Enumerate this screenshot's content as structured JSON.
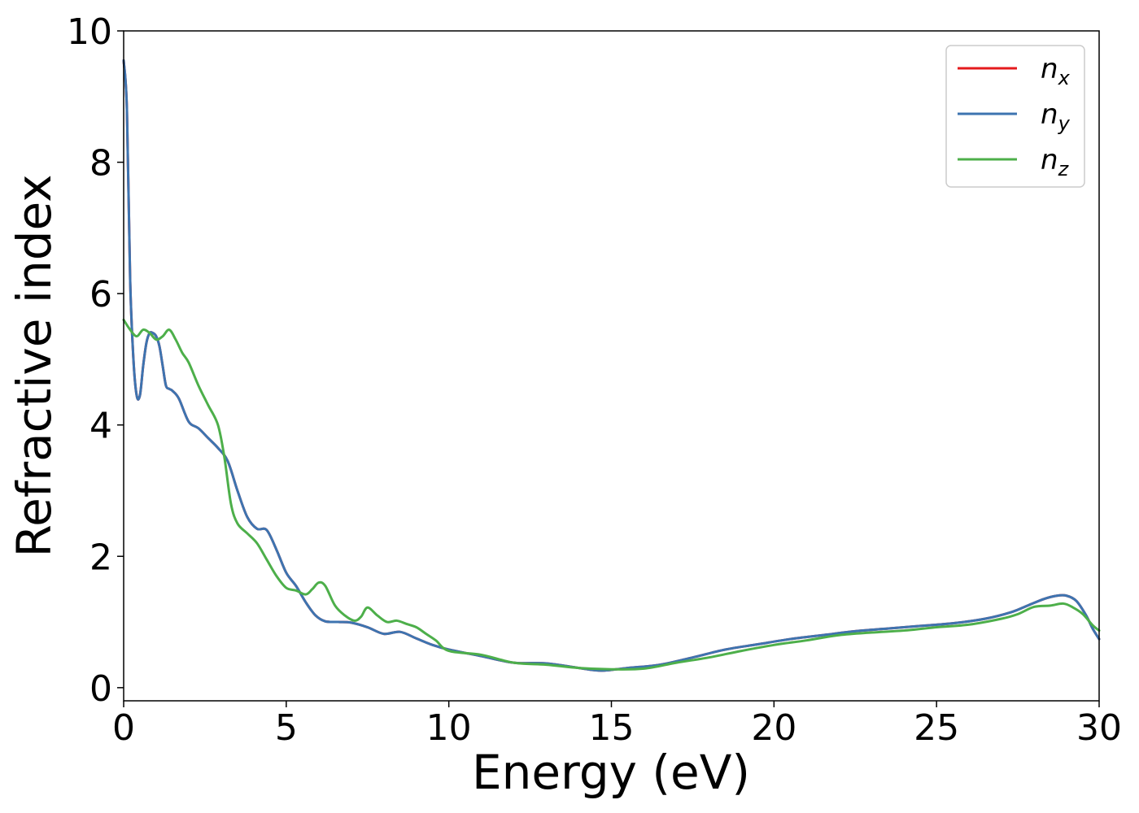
{
  "chart_data": {
    "type": "line",
    "title": "",
    "xlabel": "Energy (eV)",
    "ylabel": "Refractive index",
    "xlim": [
      0,
      30
    ],
    "ylim": [
      -0.2,
      10
    ],
    "xticks": [
      0,
      5,
      10,
      15,
      20,
      25,
      30
    ],
    "yticks": [
      0,
      2,
      4,
      6,
      8,
      10
    ],
    "xtick_labels": [
      "0",
      "5",
      "10",
      "15",
      "20",
      "25",
      "30"
    ],
    "ytick_labels": [
      "0",
      "2",
      "4",
      "6",
      "8",
      "10"
    ],
    "grid": false,
    "legend_position": "top-right",
    "series": [
      {
        "name": "n_x",
        "legend_base": "n",
        "legend_sub": "x",
        "color": "#e41a1c",
        "x": [
          0,
          0.1,
          0.2,
          0.3,
          0.4,
          0.5,
          0.6,
          0.7,
          0.8,
          0.9,
          1.0,
          1.1,
          1.2,
          1.3,
          1.4,
          1.5,
          1.7,
          2.0,
          2.3,
          2.6,
          2.9,
          3.2,
          3.5,
          3.8,
          4.1,
          4.4,
          4.7,
          5.0,
          5.3,
          5.6,
          5.9,
          6.2,
          6.6,
          7.0,
          7.5,
          8.0,
          8.5,
          9.0,
          9.5,
          10.0,
          11.0,
          12.0,
          13.0,
          14.0,
          14.7,
          15.5,
          16.5,
          17.5,
          18.5,
          19.5,
          20.5,
          21.5,
          22.5,
          23.5,
          24.5,
          25.5,
          26.5,
          27.3,
          27.8,
          28.3,
          28.7,
          29.0,
          29.3,
          29.6,
          29.8,
          30.0
        ],
        "y": [
          9.55,
          8.8,
          6.2,
          5.0,
          4.45,
          4.45,
          4.9,
          5.25,
          5.4,
          5.4,
          5.35,
          5.2,
          4.9,
          4.6,
          4.55,
          4.52,
          4.4,
          4.05,
          3.95,
          3.8,
          3.65,
          3.45,
          3.0,
          2.6,
          2.42,
          2.4,
          2.1,
          1.75,
          1.55,
          1.3,
          1.1,
          1.01,
          1.0,
          0.99,
          0.92,
          0.82,
          0.85,
          0.75,
          0.65,
          0.58,
          0.48,
          0.38,
          0.37,
          0.3,
          0.26,
          0.3,
          0.35,
          0.46,
          0.58,
          0.66,
          0.74,
          0.8,
          0.86,
          0.9,
          0.94,
          0.98,
          1.05,
          1.15,
          1.25,
          1.35,
          1.4,
          1.4,
          1.32,
          1.1,
          0.9,
          0.74
        ]
      },
      {
        "name": "n_y",
        "legend_base": "n",
        "legend_sub": "y",
        "color": "#3d74b0",
        "x": [
          0,
          0.1,
          0.2,
          0.3,
          0.4,
          0.5,
          0.6,
          0.7,
          0.8,
          0.9,
          1.0,
          1.1,
          1.2,
          1.3,
          1.4,
          1.5,
          1.7,
          2.0,
          2.3,
          2.6,
          2.9,
          3.2,
          3.5,
          3.8,
          4.1,
          4.4,
          4.7,
          5.0,
          5.3,
          5.6,
          5.9,
          6.2,
          6.6,
          7.0,
          7.5,
          8.0,
          8.5,
          9.0,
          9.5,
          10.0,
          11.0,
          12.0,
          13.0,
          14.0,
          14.7,
          15.5,
          16.5,
          17.5,
          18.5,
          19.5,
          20.5,
          21.5,
          22.5,
          23.5,
          24.5,
          25.5,
          26.5,
          27.3,
          27.8,
          28.3,
          28.7,
          29.0,
          29.3,
          29.6,
          29.8,
          30.0
        ],
        "y": [
          9.55,
          8.8,
          6.2,
          5.0,
          4.45,
          4.45,
          4.9,
          5.25,
          5.4,
          5.4,
          5.35,
          5.2,
          4.9,
          4.6,
          4.55,
          4.52,
          4.4,
          4.05,
          3.95,
          3.8,
          3.65,
          3.45,
          3.0,
          2.6,
          2.42,
          2.4,
          2.1,
          1.75,
          1.55,
          1.3,
          1.1,
          1.01,
          1.0,
          0.99,
          0.92,
          0.82,
          0.85,
          0.75,
          0.65,
          0.58,
          0.48,
          0.38,
          0.37,
          0.3,
          0.26,
          0.3,
          0.35,
          0.46,
          0.58,
          0.66,
          0.74,
          0.8,
          0.86,
          0.9,
          0.94,
          0.98,
          1.05,
          1.15,
          1.25,
          1.35,
          1.4,
          1.4,
          1.32,
          1.1,
          0.9,
          0.74
        ]
      },
      {
        "name": "n_z",
        "legend_base": "n",
        "legend_sub": "z",
        "color": "#4daf4a",
        "x": [
          0,
          0.2,
          0.4,
          0.6,
          0.8,
          1.0,
          1.2,
          1.4,
          1.6,
          1.8,
          2.0,
          2.3,
          2.6,
          2.9,
          3.1,
          3.3,
          3.5,
          3.8,
          4.1,
          4.4,
          4.7,
          5.0,
          5.3,
          5.6,
          5.8,
          6.0,
          6.2,
          6.5,
          6.8,
          7.1,
          7.3,
          7.5,
          7.8,
          8.1,
          8.4,
          8.7,
          9.0,
          9.3,
          9.6,
          10.0,
          11.0,
          12.0,
          13.0,
          14.0,
          15.0,
          16.0,
          17.0,
          18.0,
          19.0,
          20.0,
          21.0,
          22.0,
          23.0,
          24.0,
          25.0,
          26.0,
          27.0,
          27.5,
          28.0,
          28.5,
          28.9,
          29.2,
          29.5,
          29.8,
          30.0
        ],
        "y": [
          5.6,
          5.45,
          5.35,
          5.45,
          5.4,
          5.3,
          5.35,
          5.45,
          5.3,
          5.1,
          4.95,
          4.6,
          4.3,
          4.0,
          3.5,
          2.8,
          2.5,
          2.35,
          2.2,
          1.95,
          1.7,
          1.52,
          1.48,
          1.42,
          1.5,
          1.6,
          1.55,
          1.25,
          1.1,
          1.02,
          1.08,
          1.22,
          1.1,
          1.0,
          1.02,
          0.97,
          0.92,
          0.82,
          0.72,
          0.56,
          0.5,
          0.38,
          0.35,
          0.3,
          0.28,
          0.29,
          0.38,
          0.46,
          0.56,
          0.65,
          0.72,
          0.8,
          0.84,
          0.87,
          0.92,
          0.96,
          1.05,
          1.12,
          1.23,
          1.25,
          1.28,
          1.22,
          1.12,
          0.95,
          0.87
        ]
      }
    ]
  }
}
